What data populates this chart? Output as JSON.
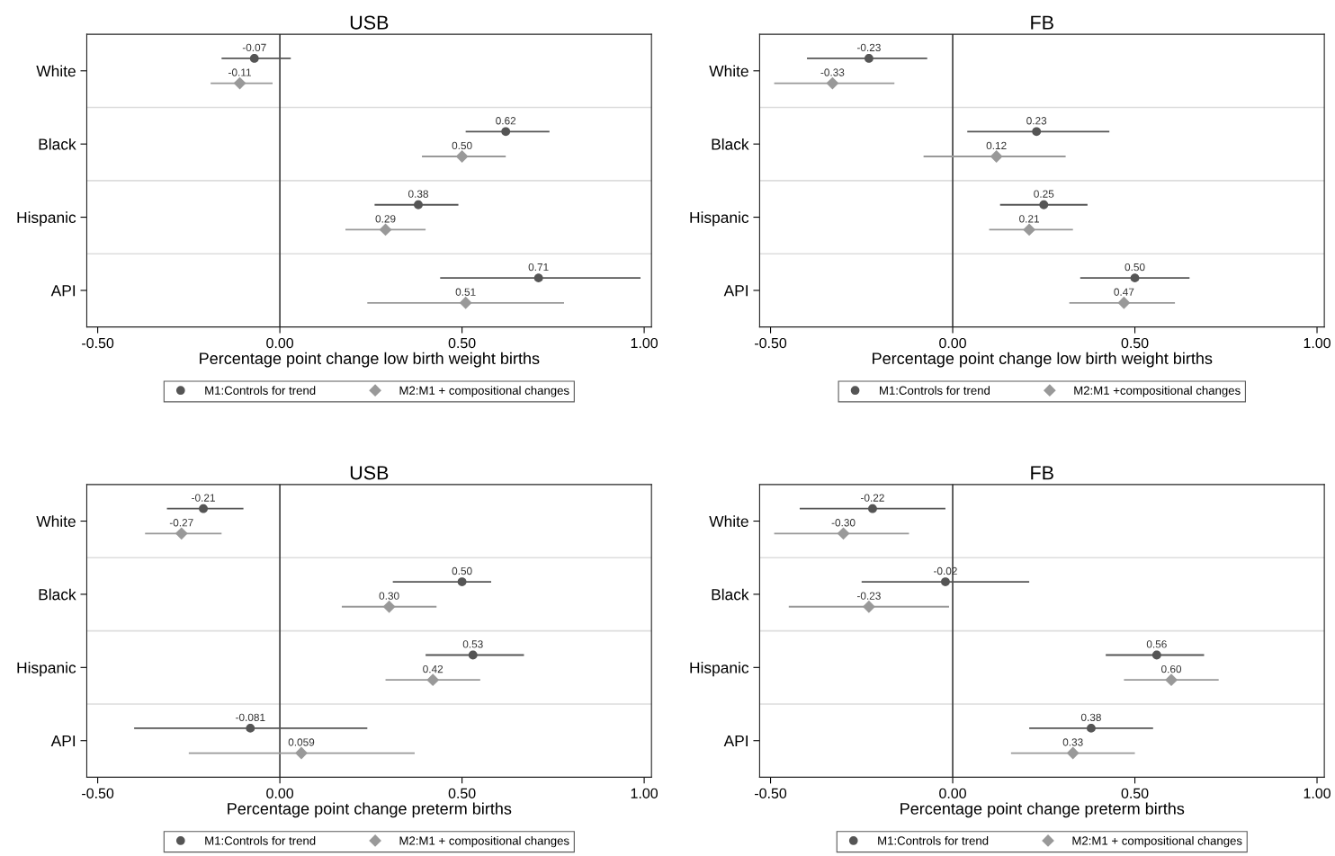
{
  "chart_data": [
    {
      "type": "scatter",
      "orientation": "horizontal",
      "title": "USB",
      "xlabel": "Percentage point change low birth weight births",
      "categories": [
        "White",
        "Black",
        "Hispanic",
        "API"
      ],
      "xlim": [
        -0.53,
        1.02
      ],
      "xticks": [
        {
          "value": -0.5,
          "label": "-0.50"
        },
        {
          "value": 0,
          "label": "0.00"
        },
        {
          "value": 0.5,
          "label": "0.50"
        },
        {
          "value": 1,
          "label": "1.00"
        }
      ],
      "grid": "y",
      "legend": "bottom",
      "ref_lines": [
        {
          "axis": "x",
          "value": 0,
          "color": "#404040"
        }
      ],
      "series": [
        {
          "name": "M1:Controls for trend",
          "color": "#555555",
          "marker": "circle",
          "values": [
            -0.07,
            0.62,
            0.38,
            0.71
          ],
          "value_labels": [
            "-0.07",
            "0.62",
            "0.38",
            "0.71"
          ],
          "errors": [
            [
              -0.16,
              0.03
            ],
            [
              0.51,
              0.74
            ],
            [
              0.26,
              0.49
            ],
            [
              0.44,
              0.99
            ]
          ]
        },
        {
          "name": "M2:M1 + compositional changes",
          "color": "#999999",
          "marker": "diamond",
          "values": [
            -0.11,
            0.5,
            0.29,
            0.51
          ],
          "value_labels": [
            "-0.11",
            "0.50",
            "0.29",
            "0.51"
          ],
          "errors": [
            [
              -0.19,
              -0.02
            ],
            [
              0.39,
              0.62
            ],
            [
              0.18,
              0.4
            ],
            [
              0.24,
              0.78
            ]
          ]
        }
      ]
    },
    {
      "type": "scatter",
      "orientation": "horizontal",
      "title": "FB",
      "xlabel": "Percentage point change low birth weight births",
      "categories": [
        "White",
        "Black",
        "Hispanic",
        "API"
      ],
      "xlim": [
        -0.53,
        1.02
      ],
      "xticks": [
        {
          "value": -0.5,
          "label": "-0.50"
        },
        {
          "value": 0,
          "label": "0.00"
        },
        {
          "value": 0.5,
          "label": "0.50"
        },
        {
          "value": 1,
          "label": "1.00"
        }
      ],
      "grid": "y",
      "legend": "bottom",
      "ref_lines": [
        {
          "axis": "x",
          "value": 0,
          "color": "#404040"
        }
      ],
      "series": [
        {
          "name": "M1:Controls for trend",
          "color": "#555555",
          "marker": "circle",
          "values": [
            -0.23,
            0.23,
            0.25,
            0.5
          ],
          "value_labels": [
            "-0.23",
            "0.23",
            "0.25",
            "0.50"
          ],
          "errors": [
            [
              -0.4,
              -0.07
            ],
            [
              0.04,
              0.43
            ],
            [
              0.13,
              0.37
            ],
            [
              0.35,
              0.65
            ]
          ]
        },
        {
          "name": "M2:M1 +compositional changes",
          "color": "#999999",
          "marker": "diamond",
          "values": [
            -0.33,
            0.12,
            0.21,
            0.47
          ],
          "value_labels": [
            "-0.33",
            "0.12",
            "0.21",
            "0.47"
          ],
          "errors": [
            [
              -0.49,
              -0.16
            ],
            [
              -0.08,
              0.31
            ],
            [
              0.1,
              0.33
            ],
            [
              0.32,
              0.61
            ]
          ]
        }
      ]
    },
    {
      "type": "scatter",
      "orientation": "horizontal",
      "title": "USB",
      "xlabel": "Percentage point change preterm births",
      "categories": [
        "White",
        "Black",
        "Hispanic",
        "API"
      ],
      "xlim": [
        -0.53,
        1.02
      ],
      "xticks": [
        {
          "value": -0.5,
          "label": "-0.50"
        },
        {
          "value": 0,
          "label": "0.00"
        },
        {
          "value": 0.5,
          "label": "0.50"
        },
        {
          "value": 1,
          "label": "1.00"
        }
      ],
      "grid": "y",
      "legend": "bottom",
      "ref_lines": [
        {
          "axis": "x",
          "value": 0,
          "color": "#404040"
        }
      ],
      "series": [
        {
          "name": "M1:Controls for trend",
          "color": "#555555",
          "marker": "circle",
          "values": [
            -0.21,
            0.5,
            0.53,
            -0.081
          ],
          "value_labels": [
            "-0.21",
            "0.50",
            "0.53",
            "-0.081"
          ],
          "errors": [
            [
              -0.31,
              -0.1
            ],
            [
              0.31,
              0.58
            ],
            [
              0.4,
              0.67
            ],
            [
              -0.4,
              0.24
            ]
          ]
        },
        {
          "name": "M2:M1 + compositional changes",
          "color": "#999999",
          "marker": "diamond",
          "values": [
            -0.27,
            0.3,
            0.42,
            0.059
          ],
          "value_labels": [
            "-0.27",
            "0.30",
            "0.42",
            "0.059"
          ],
          "errors": [
            [
              -0.37,
              -0.16
            ],
            [
              0.17,
              0.43
            ],
            [
              0.29,
              0.55
            ],
            [
              -0.25,
              0.37
            ]
          ]
        }
      ]
    },
    {
      "type": "scatter",
      "orientation": "horizontal",
      "title": "FB",
      "xlabel": "Percentage point change preterm births",
      "categories": [
        "White",
        "Black",
        "Hispanic",
        "API"
      ],
      "xlim": [
        -0.53,
        1.02
      ],
      "xticks": [
        {
          "value": -0.5,
          "label": "-0.50"
        },
        {
          "value": 0,
          "label": "0.00"
        },
        {
          "value": 0.5,
          "label": "0.50"
        },
        {
          "value": 1,
          "label": "1.00"
        }
      ],
      "grid": "y",
      "legend": "bottom",
      "ref_lines": [
        {
          "axis": "x",
          "value": 0,
          "color": "#404040"
        }
      ],
      "series": [
        {
          "name": "M1:Controls for trend",
          "color": "#555555",
          "marker": "circle",
          "values": [
            -0.22,
            -0.02,
            0.56,
            0.38
          ],
          "value_labels": [
            "-0.22",
            "-0.02",
            "0.56",
            "0.38"
          ],
          "errors": [
            [
              -0.42,
              -0.02
            ],
            [
              -0.25,
              0.21
            ],
            [
              0.42,
              0.69
            ],
            [
              0.21,
              0.55
            ]
          ]
        },
        {
          "name": "M2:M1 + compositional changes",
          "color": "#999999",
          "marker": "diamond",
          "values": [
            -0.3,
            -0.23,
            0.6,
            0.33
          ],
          "value_labels": [
            "-0.30",
            "-0.23",
            "0.60",
            "0.33"
          ],
          "errors": [
            [
              -0.49,
              -0.12
            ],
            [
              -0.45,
              -0.01
            ],
            [
              0.47,
              0.73
            ],
            [
              0.16,
              0.5
            ]
          ]
        }
      ]
    }
  ]
}
